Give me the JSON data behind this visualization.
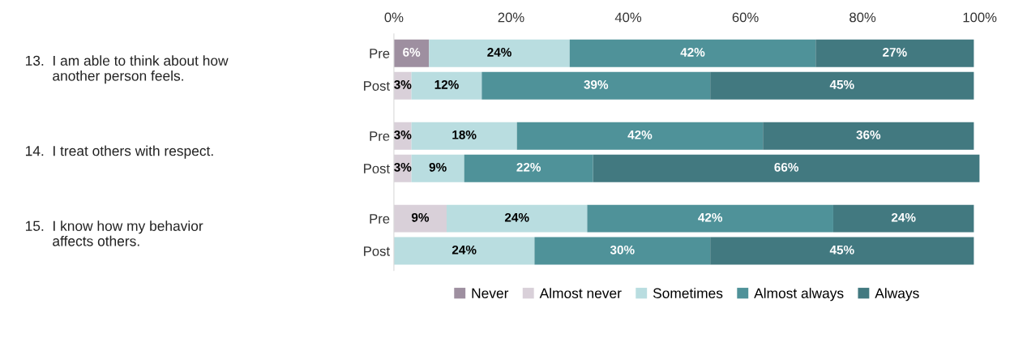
{
  "chart_data": {
    "type": "bar",
    "orientation": "horizontal",
    "stacked": true,
    "categories": [
      "Pre",
      "Post",
      "Pre",
      "Post",
      "Pre",
      "Post"
    ],
    "series": [
      {
        "name": "Never",
        "color": "#9e8fa0",
        "values": [
          6,
          null,
          null,
          null,
          null,
          null
        ],
        "value_labels": [
          "6%",
          null,
          null,
          null,
          null,
          null
        ]
      },
      {
        "name": "Almost never",
        "color": "#d9d0d9",
        "values": [
          null,
          3,
          3,
          3,
          9,
          null
        ],
        "value_labels": [
          null,
          "3%",
          "3%",
          "3%",
          "9%",
          null
        ]
      },
      {
        "name": "Sometimes",
        "color": "#b9dde0",
        "values": [
          24,
          12,
          18,
          9,
          24,
          24
        ],
        "value_labels": [
          "24%",
          "12%",
          "18%",
          "9%",
          "24%",
          "24%"
        ]
      },
      {
        "name": "Almost always",
        "color": "#4f9299",
        "values": [
          42,
          39,
          42,
          22,
          42,
          30
        ],
        "value_labels": [
          "42%",
          "39%",
          "42%",
          "22%",
          "42%",
          "30%"
        ]
      },
      {
        "name": "Always",
        "color": "#427980",
        "values": [
          27,
          45,
          36,
          66,
          24,
          45
        ],
        "value_labels": [
          "27%",
          "45%",
          "36%",
          "66%",
          "24%",
          "45%"
        ]
      }
    ],
    "xlim": [
      0,
      100
    ],
    "xticks": [
      {
        "value": 0,
        "label": "0%"
      },
      {
        "value": 20,
        "label": "20%"
      },
      {
        "value": 40,
        "label": "40%"
      },
      {
        "value": 60,
        "label": "60%"
      },
      {
        "value": 80,
        "label": "80%"
      },
      {
        "value": 100,
        "label": "100%"
      }
    ],
    "legend": "bottom",
    "grid": false,
    "annotations": [
      "13.  I am able to think about how\n       another person feels.",
      "14.  I treat others with respect.",
      "15.  I know how my behavior\n       affects others."
    ]
  }
}
